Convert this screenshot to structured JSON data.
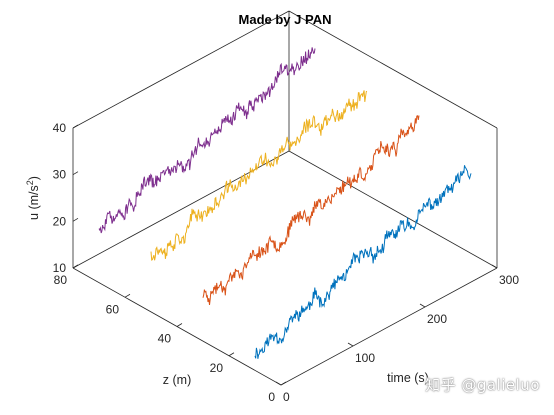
{
  "chart_data": {
    "type": "line",
    "title": "Made by J PAN",
    "xlabel": "time (s)",
    "ylabel": "z (m)",
    "zlabel_main": "u (m/s",
    "zlabel_sup": "2",
    "zlabel_close": ")",
    "xlim": [
      0,
      300
    ],
    "ylim": [
      0,
      80
    ],
    "zlim": [
      10,
      40
    ],
    "xticks": [
      "0",
      "100",
      "200",
      "300"
    ],
    "yticks": [
      "0",
      "20",
      "40",
      "60",
      "80"
    ],
    "zticks": [
      "10",
      "20",
      "30",
      "40"
    ],
    "grid": false,
    "series": [
      {
        "z": 10,
        "color": "#0072BD",
        "x_range": [
          0,
          300
        ],
        "start": 14,
        "end": 27,
        "noise": 2.2,
        "seed": 11
      },
      {
        "z": 30,
        "color": "#D95319",
        "x_range": [
          0,
          300
        ],
        "start": 20,
        "end": 31,
        "noise": 2.2,
        "seed": 23
      },
      {
        "z": 50,
        "color": "#EDB120",
        "x_range": [
          0,
          300
        ],
        "start": 23,
        "end": 33,
        "noise": 2.4,
        "seed": 37
      },
      {
        "z": 70,
        "color": "#7E2F8E",
        "x_range": [
          0,
          300
        ],
        "start": 21,
        "end": 35,
        "noise": 2.4,
        "seed": 51
      }
    ]
  },
  "watermark": "知乎 @galieluo"
}
